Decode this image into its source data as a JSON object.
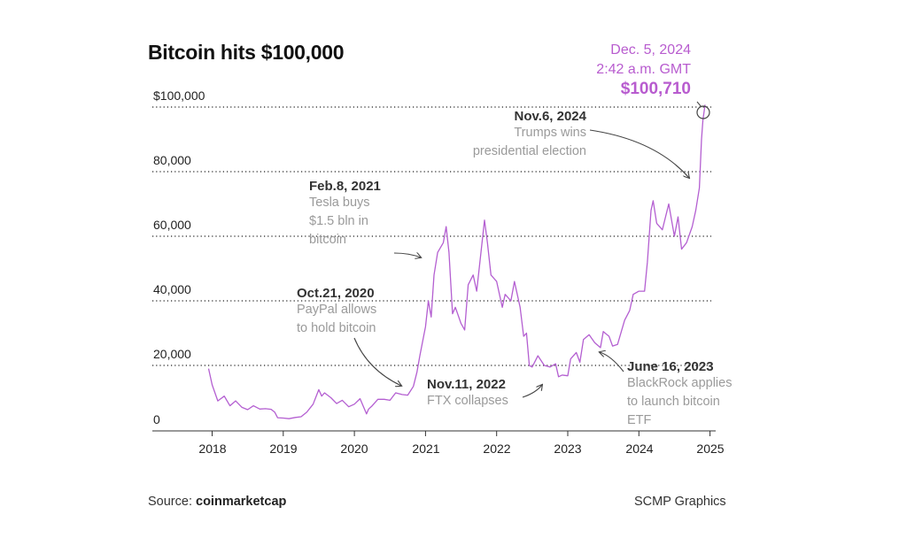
{
  "title": "Bitcoin hits $100,000",
  "source_label": "Source:",
  "source_name": "coinmarketcap",
  "credit": "SCMP Graphics",
  "colors": {
    "line": "#b45fd1",
    "highlight": "#b85ccf",
    "annotation_head": "#333333",
    "annotation_body": "#9a9a9a"
  },
  "chart_data": {
    "type": "line",
    "title": "Bitcoin hits $100,000",
    "xlabel": "",
    "ylabel": "",
    "xlim": [
      2017.3,
      2025.1
    ],
    "ylim": [
      0,
      100000
    ],
    "grid": "horizontal dotted",
    "y_ticks": [
      {
        "value": 0,
        "label": "0"
      },
      {
        "value": 20000,
        "label": "20,000"
      },
      {
        "value": 40000,
        "label": "40,000"
      },
      {
        "value": 60000,
        "label": "60,000"
      },
      {
        "value": 80000,
        "label": "80,000"
      },
      {
        "value": 100000,
        "label": "$100,000"
      }
    ],
    "x_ticks": [
      {
        "value": 2018,
        "label": "2018"
      },
      {
        "value": 2019,
        "label": "2019"
      },
      {
        "value": 2020,
        "label": "2020"
      },
      {
        "value": 2021,
        "label": "2021"
      },
      {
        "value": 2022,
        "label": "2022"
      },
      {
        "value": 2023,
        "label": "2023"
      },
      {
        "value": 2024,
        "label": "2024"
      },
      {
        "value": 2025,
        "label": "2025"
      }
    ],
    "series": [
      {
        "x": [
          2017.95,
          2018.0,
          2018.08,
          2018.17,
          2018.25,
          2018.33,
          2018.42,
          2018.5,
          2018.58,
          2018.67,
          2018.75,
          2018.83,
          2018.88,
          2018.92,
          2019.0,
          2019.08,
          2019.17,
          2019.25,
          2019.33,
          2019.42,
          2019.5,
          2019.54,
          2019.58,
          2019.67,
          2019.75,
          2019.83,
          2019.92,
          2020.0,
          2020.08,
          2020.17,
          2020.2,
          2020.25,
          2020.33,
          2020.42,
          2020.5,
          2020.58,
          2020.67,
          2020.75,
          2020.83,
          2020.88,
          2020.92,
          2021.0,
          2021.04,
          2021.08,
          2021.12,
          2021.17,
          2021.25,
          2021.29,
          2021.33,
          2021.38,
          2021.42,
          2021.5,
          2021.55,
          2021.6,
          2021.67,
          2021.72,
          2021.78,
          2021.83,
          2021.87,
          2021.92,
          2022.0,
          2022.08,
          2022.12,
          2022.2,
          2022.25,
          2022.33,
          2022.38,
          2022.42,
          2022.46,
          2022.5,
          2022.58,
          2022.67,
          2022.75,
          2022.83,
          2022.87,
          2022.92,
          2023.0,
          2023.04,
          2023.12,
          2023.17,
          2023.22,
          2023.3,
          2023.38,
          2023.46,
          2023.5,
          2023.58,
          2023.63,
          2023.7,
          2023.8,
          2023.87,
          2023.92,
          2024.0,
          2024.08,
          2024.12,
          2024.17,
          2024.2,
          2024.25,
          2024.33,
          2024.42,
          2024.5,
          2024.55,
          2024.6,
          2024.67,
          2024.75,
          2024.8,
          2024.85,
          2024.88,
          2024.9,
          2024.93
        ],
        "y": [
          19000,
          14000,
          9000,
          10500,
          7500,
          9000,
          7000,
          6300,
          7500,
          6500,
          6600,
          6400,
          5500,
          3800,
          3700,
          3500,
          3900,
          4100,
          5500,
          8000,
          12500,
          10500,
          11500,
          10000,
          8200,
          9200,
          7200,
          8000,
          9700,
          5000,
          6500,
          7500,
          9500,
          9500,
          9200,
          11500,
          11000,
          10800,
          13500,
          18000,
          23000,
          32000,
          40000,
          35000,
          48000,
          55000,
          58000,
          63000,
          55000,
          36000,
          38000,
          33000,
          31000,
          45000,
          48000,
          43000,
          55000,
          65000,
          58000,
          48000,
          46000,
          38000,
          42000,
          40000,
          46000,
          38000,
          29000,
          30000,
          20000,
          19500,
          23000,
          20000,
          19500,
          20500,
          16500,
          17000,
          16800,
          22000,
          24000,
          21000,
          28000,
          29500,
          27000,
          25500,
          30500,
          29000,
          26000,
          26500,
          34000,
          37000,
          42000,
          43000,
          43000,
          52000,
          68000,
          71000,
          64000,
          62000,
          70000,
          60000,
          66000,
          56000,
          58000,
          63000,
          68000,
          75000,
          90000,
          96000,
          100710
        ]
      }
    ],
    "annotations": [
      {
        "date": "Oct.21, 2020",
        "text": "PayPal allows to hold bitcoin",
        "lines": [
          "PayPal allows",
          "to hold bitcoin"
        ]
      },
      {
        "date": "Feb.8, 2021",
        "text": "Tesla buys $1.5 bln in bitcoin",
        "lines": [
          "Tesla buys",
          "$1.5 bln in",
          "bitcoin"
        ]
      },
      {
        "date": "Nov.11, 2022",
        "text": "FTX collapses",
        "lines": [
          "FTX collapses"
        ]
      },
      {
        "date": "June 16, 2023",
        "text": "BlackRock applies to launch bitcoin ETF",
        "lines": [
          "BlackRock applies",
          "to launch bitcoin",
          "ETF"
        ]
      },
      {
        "date": "Nov.6, 2024",
        "text": "Trumps wins presidential election",
        "lines": [
          "Trumps wins",
          "presidential election"
        ]
      }
    ],
    "peak": {
      "date": "Dec. 5, 2024",
      "time": "2:42 a.m. GMT",
      "value_label": "$100,710",
      "value": 100710
    }
  }
}
